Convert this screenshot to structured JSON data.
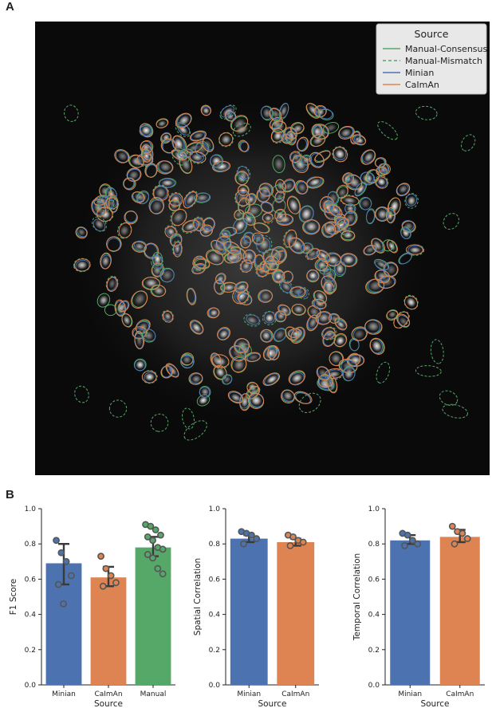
{
  "panel_labels": {
    "a": "A",
    "b": "B"
  },
  "legend": {
    "title": "Source",
    "items": [
      {
        "label": "Manual-Consensus",
        "color": "#55a868",
        "dashed": false
      },
      {
        "label": "Manual-Mismatch",
        "color": "#55a868",
        "dashed": true
      },
      {
        "label": "Minian",
        "color": "#4c72b0",
        "dashed": false
      },
      {
        "label": "CaImAn",
        "color": "#dd8452",
        "dashed": false
      }
    ]
  },
  "colors": {
    "minian": "#4c72b0",
    "caiman": "#dd8452",
    "manual": "#55a868",
    "image_bg": "#0a0a0a"
  },
  "chart_data": [
    {
      "type": "bar",
      "categories": [
        "Minian",
        "CaImAn",
        "Manual"
      ],
      "values": [
        0.69,
        0.61,
        0.78
      ],
      "error": [
        [
          0.57,
          0.8
        ],
        [
          0.56,
          0.67
        ],
        [
          0.73,
          0.84
        ]
      ],
      "points": [
        [
          0.82,
          0.75,
          0.7,
          0.62,
          0.57,
          0.46
        ],
        [
          0.73,
          0.66,
          0.62,
          0.58,
          0.56
        ],
        [
          0.91,
          0.9,
          0.88,
          0.85,
          0.84,
          0.82,
          0.78,
          0.77,
          0.74,
          0.72,
          0.66,
          0.63
        ]
      ],
      "xlabel": "Source",
      "ylabel": "F1 Score",
      "ylim": [
        0,
        1.0
      ],
      "yticks": [
        "0.0",
        "0.2",
        "0.4",
        "0.6",
        "0.8",
        "1.0"
      ]
    },
    {
      "type": "bar",
      "categories": [
        "Minian",
        "CaImAn"
      ],
      "values": [
        0.83,
        0.81
      ],
      "error": [
        [
          0.81,
          0.85
        ],
        [
          0.79,
          0.83
        ]
      ],
      "points": [
        [
          0.87,
          0.86,
          0.85,
          0.83,
          0.8
        ],
        [
          0.85,
          0.84,
          0.82,
          0.81,
          0.79
        ]
      ],
      "xlabel": "Source",
      "ylabel": "Spatial Correlation",
      "ylim": [
        0,
        1.0
      ],
      "yticks": [
        "0.0",
        "0.2",
        "0.4",
        "0.6",
        "0.8",
        "1.0"
      ]
    },
    {
      "type": "bar",
      "categories": [
        "Minian",
        "CaImAn"
      ],
      "values": [
        0.82,
        0.84
      ],
      "error": [
        [
          0.8,
          0.85
        ],
        [
          0.81,
          0.88
        ]
      ],
      "points": [
        [
          0.86,
          0.85,
          0.82,
          0.8,
          0.79
        ],
        [
          0.9,
          0.87,
          0.86,
          0.83,
          0.8
        ]
      ],
      "xlabel": "Source",
      "ylabel": "Temporal Correlation",
      "ylim": [
        0,
        1.0
      ],
      "yticks": [
        "0.0",
        "0.2",
        "0.4",
        "0.6",
        "0.8",
        "1.0"
      ]
    }
  ]
}
